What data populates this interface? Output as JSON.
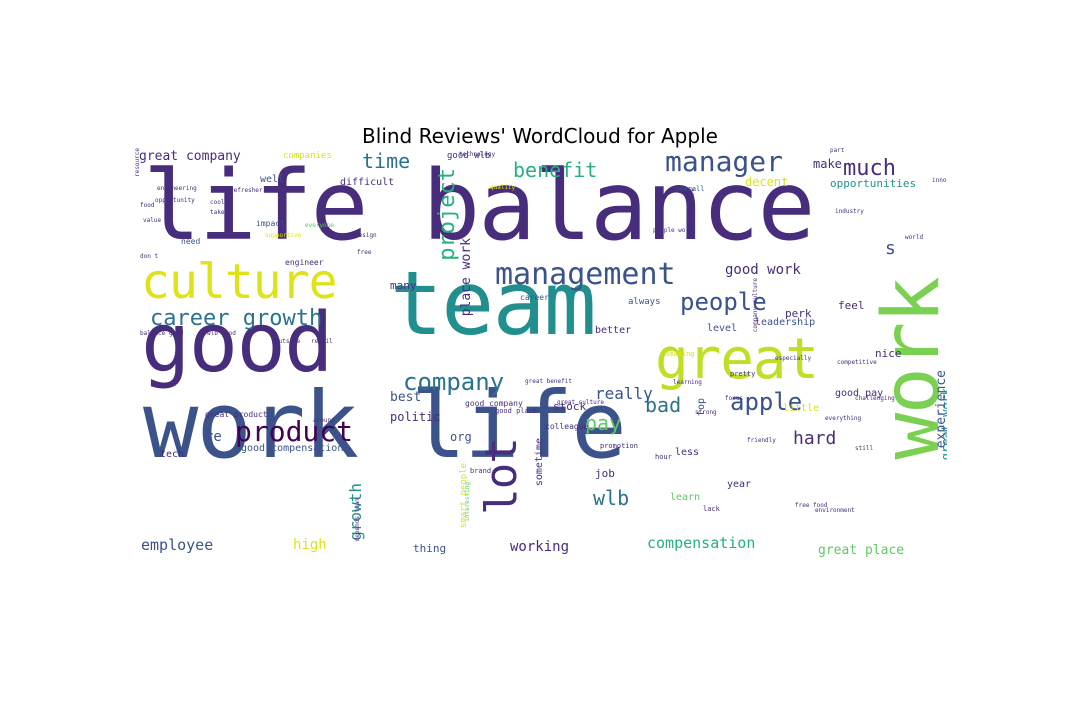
{
  "title": "Blind Reviews' WordCloud for Apple",
  "words": [
    {
      "text": "life balance",
      "size": 96,
      "color": "#472d7b",
      "vertical": false
    },
    {
      "text": "work life",
      "size": 92,
      "color": "#3b528b",
      "vertical": false
    },
    {
      "text": "team",
      "size": 88,
      "color": "#218f8d",
      "vertical": false
    },
    {
      "text": "good",
      "size": 82,
      "color": "#472d7b",
      "vertical": false
    },
    {
      "text": "work",
      "size": 78,
      "color": "#7ad151",
      "vertical": true
    },
    {
      "text": "great",
      "size": 56,
      "color": "#bddf26",
      "vertical": false
    },
    {
      "text": "culture",
      "size": 48,
      "color": "#dde318",
      "vertical": false
    },
    {
      "text": "lot",
      "size": 44,
      "color": "#472d7b",
      "vertical": true
    },
    {
      "text": "management",
      "size": 30,
      "color": "#3b528b",
      "vertical": false
    },
    {
      "text": "manager",
      "size": 28,
      "color": "#3b528b",
      "vertical": false
    },
    {
      "text": "product",
      "size": 28,
      "color": "#440154",
      "vertical": false
    },
    {
      "text": "company",
      "size": 24,
      "color": "#2c728e",
      "vertical": false
    },
    {
      "text": "career growth",
      "size": 22,
      "color": "#2c728e",
      "vertical": false
    },
    {
      "text": "people",
      "size": 24,
      "color": "#3b528b",
      "vertical": false
    },
    {
      "text": "apple",
      "size": 24,
      "color": "#3b528b",
      "vertical": false
    },
    {
      "text": "much",
      "size": 22,
      "color": "#472d7b",
      "vertical": false
    },
    {
      "text": "time",
      "size": 20,
      "color": "#2c728e",
      "vertical": false
    },
    {
      "text": "project",
      "size": 22,
      "color": "#28ae80",
      "vertical": true
    },
    {
      "text": "benefit",
      "size": 20,
      "color": "#28ae80",
      "vertical": false
    },
    {
      "text": "wlb",
      "size": 20,
      "color": "#2c728e",
      "vertical": false
    },
    {
      "text": "bad",
      "size": 20,
      "color": "#2c728e",
      "vertical": false
    },
    {
      "text": "pay",
      "size": 20,
      "color": "#5ec962",
      "vertical": false
    },
    {
      "text": "hard",
      "size": 18,
      "color": "#472d7b",
      "vertical": false
    },
    {
      "text": "s",
      "size": 18,
      "color": "#3b528b",
      "vertical": false
    },
    {
      "text": "really",
      "size": 16,
      "color": "#3b528b",
      "vertical": false
    },
    {
      "text": "growth",
      "size": 16,
      "color": "#21918c",
      "vertical": true
    },
    {
      "text": "compensation",
      "size": 15,
      "color": "#28ae80",
      "vertical": false
    },
    {
      "text": "employee",
      "size": 15,
      "color": "#3b528b",
      "vertical": false
    },
    {
      "text": "working",
      "size": 14,
      "color": "#472d7b",
      "vertical": false
    },
    {
      "text": "good work",
      "size": 14,
      "color": "#472d7b",
      "vertical": false
    },
    {
      "text": "great company",
      "size": 13,
      "color": "#472d7b",
      "vertical": false
    },
    {
      "text": "great place",
      "size": 13,
      "color": "#5ec962",
      "vertical": false
    },
    {
      "text": "experience",
      "size": 13,
      "color": "#3b528b",
      "vertical": true
    },
    {
      "text": "great work",
      "size": 12,
      "color": "#21918c",
      "vertical": true
    },
    {
      "text": "high",
      "size": 14,
      "color": "#dde318",
      "vertical": false
    },
    {
      "text": "place work",
      "size": 13,
      "color": "#472d7b",
      "vertical": true
    },
    {
      "text": "re",
      "size": 14,
      "color": "#3b528b",
      "vertical": false
    },
    {
      "text": "best",
      "size": 13,
      "color": "#3b528b",
      "vertical": false
    },
    {
      "text": "make",
      "size": 12,
      "color": "#472d7b",
      "vertical": false
    },
    {
      "text": "decent",
      "size": 12,
      "color": "#dde318",
      "vertical": false
    },
    {
      "text": "opportunities",
      "size": 11,
      "color": "#21918c",
      "vertical": false
    },
    {
      "text": "politic",
      "size": 12,
      "color": "#472d7b",
      "vertical": false
    },
    {
      "text": "org",
      "size": 12,
      "color": "#3b528b",
      "vertical": false
    },
    {
      "text": "stock",
      "size": 11,
      "color": "#472d7b",
      "vertical": false
    },
    {
      "text": "many",
      "size": 11,
      "color": "#472d7b",
      "vertical": false
    },
    {
      "text": "feel",
      "size": 11,
      "color": "#472d7b",
      "vertical": false
    },
    {
      "text": "nice",
      "size": 11,
      "color": "#472d7b",
      "vertical": false
    },
    {
      "text": "perk",
      "size": 11,
      "color": "#472d7b",
      "vertical": false
    },
    {
      "text": "leadership",
      "size": 10,
      "color": "#3b528b",
      "vertical": false
    },
    {
      "text": "level",
      "size": 10,
      "color": "#3b528b",
      "vertical": false
    },
    {
      "text": "good pay",
      "size": 10,
      "color": "#472d7b",
      "vertical": false
    },
    {
      "text": "thing",
      "size": 11,
      "color": "#3b528b",
      "vertical": false
    },
    {
      "text": "job",
      "size": 11,
      "color": "#472d7b",
      "vertical": false
    },
    {
      "text": "learn",
      "size": 10,
      "color": "#5ec962",
      "vertical": false
    },
    {
      "text": "year",
      "size": 10,
      "color": "#472d7b",
      "vertical": false
    },
    {
      "text": "less",
      "size": 10,
      "color": "#472d7b",
      "vertical": false
    },
    {
      "text": "tech",
      "size": 10,
      "color": "#472d7b",
      "vertical": false
    },
    {
      "text": "well",
      "size": 10,
      "color": "#3b528b",
      "vertical": false
    },
    {
      "text": "difficult",
      "size": 10,
      "color": "#472d7b",
      "vertical": false
    },
    {
      "text": "companies",
      "size": 9,
      "color": "#dde318",
      "vertical": false
    },
    {
      "text": "good wlb",
      "size": 9,
      "color": "#472d7b",
      "vertical": false
    },
    {
      "text": "good compensation",
      "size": 10,
      "color": "#3b528b",
      "vertical": false
    },
    {
      "text": "better",
      "size": 10,
      "color": "#472d7b",
      "vertical": false
    },
    {
      "text": "always",
      "size": 9,
      "color": "#3b528b",
      "vertical": false
    },
    {
      "text": "little",
      "size": 10,
      "color": "#dde318",
      "vertical": false
    },
    {
      "text": "sometime",
      "size": 10,
      "color": "#472d7b",
      "vertical": true
    },
    {
      "text": "smart people",
      "size": 9,
      "color": "#dde318",
      "vertical": true
    },
    {
      "text": "top",
      "size": 10,
      "color": "#3b528b",
      "vertical": true
    },
    {
      "text": "impact",
      "size": 8,
      "color": "#3b528b",
      "vertical": false
    },
    {
      "text": "engineer",
      "size": 8,
      "color": "#472d7b",
      "vertical": false
    },
    {
      "text": "need",
      "size": 8,
      "color": "#3b528b",
      "vertical": false
    },
    {
      "text": "career",
      "size": 8,
      "color": "#3b528b",
      "vertical": false
    },
    {
      "text": "great product",
      "size": 8,
      "color": "#472d7b",
      "vertical": false
    },
    {
      "text": "good company",
      "size": 8,
      "color": "#472d7b",
      "vertical": false
    },
    {
      "text": "colleague",
      "size": 8,
      "color": "#472d7b",
      "vertical": false
    },
    {
      "text": "promotion",
      "size": 7,
      "color": "#472d7b",
      "vertical": false
    },
    {
      "text": "brand",
      "size": 7,
      "color": "#472d7b",
      "vertical": false
    },
    {
      "text": "hour",
      "size": 7,
      "color": "#472d7b",
      "vertical": false
    },
    {
      "text": "lack",
      "size": 7,
      "color": "#472d7b",
      "vertical": false
    },
    {
      "text": "overall",
      "size": 7,
      "color": "#3b528b",
      "vertical": false
    },
    {
      "text": "amazing",
      "size": 7,
      "color": "#dde318",
      "vertical": false
    },
    {
      "text": "pretty",
      "size": 7,
      "color": "#472d7b",
      "vertical": false
    },
    {
      "text": "good place",
      "size": 7,
      "color": "#472d7b",
      "vertical": false
    },
    {
      "text": "free food",
      "size": 6,
      "color": "#472d7b",
      "vertical": false
    },
    {
      "text": "depends team",
      "size": 6,
      "color": "#472d7b",
      "vertical": true
    },
    {
      "text": "interesting",
      "size": 6,
      "color": "#5ec962",
      "vertical": true
    },
    {
      "text": "engineering",
      "size": 6,
      "color": "#472d7b",
      "vertical": false
    },
    {
      "text": "opportunity",
      "size": 6,
      "color": "#472d7b",
      "vertical": false
    },
    {
      "text": "balance good",
      "size": 6,
      "color": "#472d7b",
      "vertical": false
    },
    {
      "text": "wlb good",
      "size": 6,
      "color": "#472d7b",
      "vertical": false
    },
    {
      "text": "don t",
      "size": 6,
      "color": "#472d7b",
      "vertical": false
    },
    {
      "text": "everything",
      "size": 6,
      "color": "#472d7b",
      "vertical": false
    },
    {
      "text": "technology",
      "size": 6,
      "color": "#472d7b",
      "vertical": false
    },
    {
      "text": "great benefit",
      "size": 6,
      "color": "#472d7b",
      "vertical": false
    },
    {
      "text": "great culture",
      "size": 6,
      "color": "#472d7b",
      "vertical": false
    },
    {
      "text": "people work",
      "size": 6,
      "color": "#472d7b",
      "vertical": false
    },
    {
      "text": "company culture",
      "size": 6,
      "color": "#472d7b",
      "vertical": true
    },
    {
      "text": "industry",
      "size": 6,
      "color": "#472d7b",
      "vertical": false
    },
    {
      "text": "world",
      "size": 6,
      "color": "#472d7b",
      "vertical": false
    },
    {
      "text": "especially",
      "size": 6,
      "color": "#472d7b",
      "vertical": false
    },
    {
      "text": "competitive",
      "size": 6,
      "color": "#472d7b",
      "vertical": false
    },
    {
      "text": "challenging",
      "size": 6,
      "color": "#472d7b",
      "vertical": false
    },
    {
      "text": "different",
      "size": 6,
      "color": "#472d7b",
      "vertical": false
    },
    {
      "text": "average",
      "size": 6,
      "color": "#472d7b",
      "vertical": false
    },
    {
      "text": "political",
      "size": 6,
      "color": "#472d7b",
      "vertical": false
    },
    {
      "text": "apple product",
      "size": 6,
      "color": "#472d7b",
      "vertical": false
    },
    {
      "text": "environment",
      "size": 6,
      "color": "#472d7b",
      "vertical": false
    },
    {
      "text": "terrible",
      "size": 6,
      "color": "#472d7b",
      "vertical": false
    },
    {
      "text": "secrecy",
      "size": 6,
      "color": "#472d7b",
      "vertical": false
    },
    {
      "text": "discount",
      "size": 6,
      "color": "#472d7b",
      "vertical": false
    },
    {
      "text": "refresher",
      "size": 6,
      "color": "#472d7b",
      "vertical": false
    },
    {
      "text": "hardware",
      "size": 6,
      "color": "#472d7b",
      "vertical": true
    },
    {
      "text": "quality",
      "size": 6,
      "color": "#dde318",
      "vertical": false
    },
    {
      "text": "everyone",
      "size": 6,
      "color": "#5ec962",
      "vertical": false
    },
    {
      "text": "design",
      "size": 6,
      "color": "#472d7b",
      "vertical": false
    },
    {
      "text": "free",
      "size": 6,
      "color": "#472d7b",
      "vertical": false
    },
    {
      "text": "take",
      "size": 6,
      "color": "#472d7b",
      "vertical": false
    },
    {
      "text": "cool",
      "size": 6,
      "color": "#472d7b",
      "vertical": false
    },
    {
      "text": "food",
      "size": 6,
      "color": "#472d7b",
      "vertical": false
    },
    {
      "text": "value",
      "size": 6,
      "color": "#472d7b",
      "vertical": false
    },
    {
      "text": "still",
      "size": 6,
      "color": "#472d7b",
      "vertical": false
    },
    {
      "text": "friendly",
      "size": 6,
      "color": "#472d7b",
      "vertical": false
    },
    {
      "text": "strong",
      "size": 6,
      "color": "#472d7b",
      "vertical": false
    },
    {
      "text": "learning",
      "size": 6,
      "color": "#472d7b",
      "vertical": false
    },
    {
      "text": "focus",
      "size": 6,
      "color": "#472d7b",
      "vertical": false
    },
    {
      "text": "around",
      "size": 6,
      "color": "#472d7b",
      "vertical": false
    },
    {
      "text": "supportive",
      "size": 6,
      "color": "#dde318",
      "vertical": false
    },
    {
      "text": "retail",
      "size": 6,
      "color": "#472d7b",
      "vertical": false
    },
    {
      "text": "outside",
      "size": 6,
      "color": "#472d7b",
      "vertical": false
    },
    {
      "text": "part",
      "size": 6,
      "color": "#472d7b",
      "vertical": false
    },
    {
      "text": "innovation",
      "size": 6,
      "color": "#472d7b",
      "vertical": false
    },
    {
      "text": "resource",
      "size": 6,
      "color": "#472d7b",
      "vertical": true
    }
  ]
}
